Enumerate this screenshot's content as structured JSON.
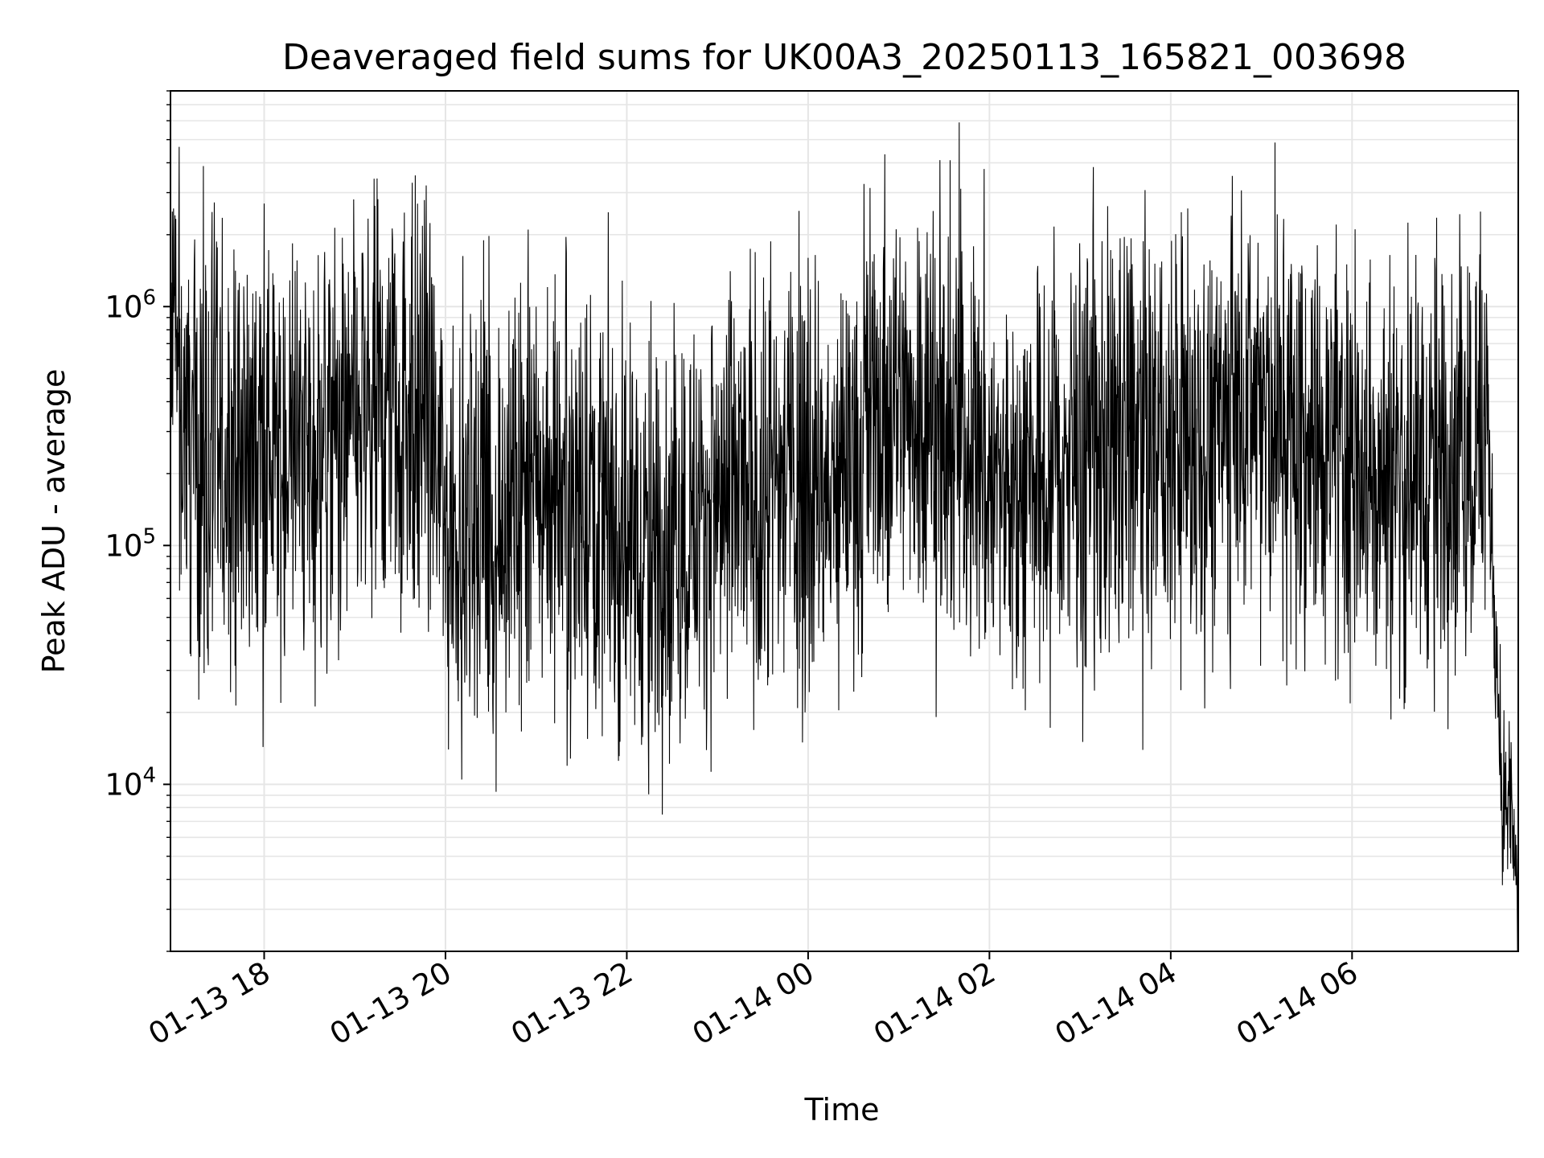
{
  "chart_data": {
    "type": "line",
    "title": "Deaveraged field sums for UK00A3_20250113_165821_003698",
    "xlabel": "Time",
    "ylabel": "Peak ADU - average",
    "y_scale": "log",
    "grid": true,
    "grid_minor_y": true,
    "line_color": "#000000",
    "grid_color": "#e6e6e6",
    "xlim": [
      "2025-01-13 16:58",
      "2025-01-14 07:50"
    ],
    "ylim": [
      2000,
      8000000
    ],
    "x_ticks": [
      {
        "label": "01-13 18",
        "value": "2025-01-13 18:00"
      },
      {
        "label": "01-13 20",
        "value": "2025-01-13 20:00"
      },
      {
        "label": "01-13 22",
        "value": "2025-01-13 22:00"
      },
      {
        "label": "01-14 00",
        "value": "2025-01-14 00:00"
      },
      {
        "label": "01-14 02",
        "value": "2025-01-14 02:00"
      },
      {
        "label": "01-14 04",
        "value": "2025-01-14 04:00"
      },
      {
        "label": "01-14 06",
        "value": "2025-01-14 06:00"
      }
    ],
    "y_ticks": [
      {
        "base": "10",
        "exp": "4",
        "value": 10000
      },
      {
        "base": "10",
        "exp": "5",
        "value": 100000
      },
      {
        "base": "10",
        "exp": "6",
        "value": 1000000
      }
    ],
    "series": [
      {
        "x": [
          "2025-01-13 16:58",
          "2025-01-13 17:00",
          "2025-01-13 17:05",
          "2025-01-13 17:10",
          "2025-01-13 17:15",
          "2025-01-13 17:30",
          "2025-01-13 17:45",
          "2025-01-13 18:00",
          "2025-01-13 18:15",
          "2025-01-13 18:30",
          "2025-01-13 18:45",
          "2025-01-13 19:00",
          "2025-01-13 19:15",
          "2025-01-13 19:30",
          "2025-01-13 19:45",
          "2025-01-13 20:00",
          "2025-01-13 20:15",
          "2025-01-13 20:30",
          "2025-01-13 20:45",
          "2025-01-13 21:00",
          "2025-01-13 21:15",
          "2025-01-13 21:30",
          "2025-01-13 21:45",
          "2025-01-13 22:00",
          "2025-01-13 22:15",
          "2025-01-13 22:30",
          "2025-01-13 22:45",
          "2025-01-13 23:00",
          "2025-01-13 23:15",
          "2025-01-13 23:30",
          "2025-01-13 23:45",
          "2025-01-14 00:00",
          "2025-01-14 00:15",
          "2025-01-14 00:30",
          "2025-01-14 00:45",
          "2025-01-14 01:00",
          "2025-01-14 01:15",
          "2025-01-14 01:30",
          "2025-01-14 01:45",
          "2025-01-14 02:00",
          "2025-01-14 02:15",
          "2025-01-14 02:30",
          "2025-01-14 02:45",
          "2025-01-14 03:00",
          "2025-01-14 03:15",
          "2025-01-14 03:30",
          "2025-01-14 03:45",
          "2025-01-14 04:00",
          "2025-01-14 04:15",
          "2025-01-14 04:30",
          "2025-01-14 04:45",
          "2025-01-14 05:00",
          "2025-01-14 05:15",
          "2025-01-14 05:30",
          "2025-01-14 05:45",
          "2025-01-14 06:00",
          "2025-01-14 06:15",
          "2025-01-14 06:30",
          "2025-01-14 06:45",
          "2025-01-14 07:00",
          "2025-01-14 07:10",
          "2025-01-14 07:20",
          "2025-01-14 07:30",
          "2025-01-14 07:35",
          "2025-01-14 07:40",
          "2025-01-14 07:45",
          "2025-01-14 07:50"
        ],
        "values": [
          550000,
          700000,
          400000,
          300000,
          250000,
          220000,
          260000,
          240000,
          230000,
          250000,
          280000,
          300000,
          350000,
          400000,
          380000,
          140000,
          130000,
          120000,
          140000,
          170000,
          200000,
          180000,
          150000,
          110000,
          100000,
          110000,
          130000,
          150000,
          160000,
          170000,
          190000,
          200000,
          140000,
          300000,
          350000,
          400000,
          380000,
          330000,
          280000,
          200000,
          160000,
          180000,
          200000,
          220000,
          250000,
          260000,
          270000,
          280000,
          290000,
          300000,
          380000,
          330000,
          300000,
          290000,
          270000,
          220000,
          200000,
          200000,
          210000,
          230000,
          260000,
          280000,
          280000,
          40000,
          9000,
          8000,
          3000
        ],
        "peaks_x": [
          "2025-01-13 18:00",
          "2025-01-13 19:25",
          "2025-01-13 19:38",
          "2025-01-14 00:00",
          "2025-01-14 01:40",
          "2025-01-14 04:40",
          "2025-01-14 07:25"
        ],
        "peaks": [
          2700000,
          1900000,
          3300000,
          1600000,
          5900000,
          2400000,
          2500000
        ],
        "troughs_x": [
          "2025-01-13 20:02",
          "2025-01-13 20:40",
          "2025-01-13 22:15",
          "2025-01-13 23:58",
          "2025-01-14 07:40"
        ],
        "troughs": [
          14000,
          20000,
          22000,
          20000,
          4300
        ]
      }
    ]
  }
}
